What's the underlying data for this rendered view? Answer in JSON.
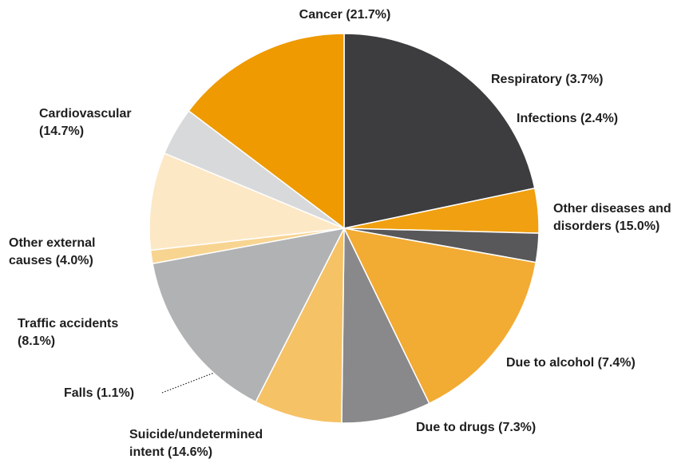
{
  "chart_data": {
    "type": "pie",
    "title": "",
    "start": "12 o'clock",
    "direction": "clockwise",
    "slices": [
      {
        "label": [
          "Cancer (21.7%)"
        ],
        "value": 21.7,
        "color": "#3d3d3f"
      },
      {
        "label": [
          "Respiratory (3.7%)"
        ],
        "value": 3.7,
        "color": "#f0a010"
      },
      {
        "label": [
          "Infections (2.4%)"
        ],
        "value": 2.4,
        "color": "#58585a"
      },
      {
        "label": [
          "Other diseases and",
          "disorders (15.0%)"
        ],
        "value": 15.0,
        "color": "#f2ab33"
      },
      {
        "label": [
          "Due to alcohol (7.4%)"
        ],
        "value": 7.4,
        "color": "#89898b"
      },
      {
        "label": [
          "Due to drugs (7.3%)"
        ],
        "value": 7.3,
        "color": "#f6c266"
      },
      {
        "label": [
          "Suicide/undetermined",
          "intent (14.6%)"
        ],
        "value": 14.6,
        "color": "#b1b2b4"
      },
      {
        "label": [
          "Falls (1.1%)"
        ],
        "value": 1.1,
        "color": "#f8d491"
      },
      {
        "label": [
          "Traffic accidents",
          "(8.1%)"
        ],
        "value": 8.1,
        "color": "#fde8c6"
      },
      {
        "label": [
          "Other external",
          "causes (4.0%)"
        ],
        "value": 4.0,
        "color": "#d8d9da"
      },
      {
        "label": [
          "Cardiovascular",
          "(14.7%)"
        ],
        "value": 14.7,
        "color": "#ee9a00"
      }
    ]
  }
}
